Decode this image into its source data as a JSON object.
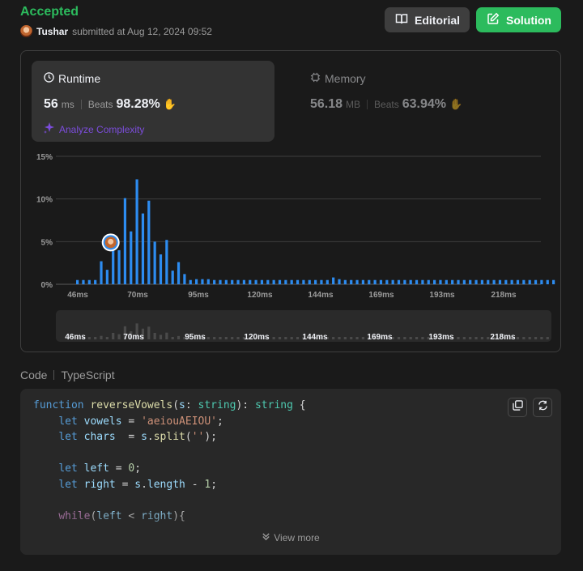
{
  "submission": {
    "status": "Accepted",
    "user": "Tushar",
    "submitted_text": "submitted at Aug 12, 2024 09:52"
  },
  "buttons": {
    "editorial": "Editorial",
    "solution": "Solution"
  },
  "runtime": {
    "title": "Runtime",
    "value": "56",
    "unit": "ms",
    "beats_label": "Beats",
    "beats_pct": "98.28%",
    "analyze_label": "Analyze Complexity"
  },
  "memory": {
    "title": "Memory",
    "value": "56.18",
    "unit": "MB",
    "beats_label": "Beats",
    "beats_pct": "63.94%"
  },
  "colors": {
    "accent_green": "#2cbb5d",
    "bar_blue": "#2d8cf0",
    "purple": "#7c4ddc"
  },
  "chart_data": {
    "type": "bar",
    "title": "",
    "xlabel": "",
    "ylabel": "",
    "ylim": [
      0,
      15
    ],
    "y_ticks": [
      "15%",
      "10%",
      "5%",
      "0%"
    ],
    "x_ticks": [
      "46ms",
      "70ms",
      "95ms",
      "120ms",
      "144ms",
      "169ms",
      "193ms",
      "218ms"
    ],
    "user_marker_bar_index": 6,
    "values": [
      0.5,
      0.5,
      0.5,
      0.5,
      2.7,
      1.7,
      5.0,
      4.0,
      10.1,
      6.2,
      12.3,
      8.3,
      9.8,
      5.0,
      3.5,
      5.2,
      1.6,
      2.6,
      1.2,
      0.5,
      0.6,
      0.6,
      0.6,
      0.5,
      0.5,
      0.5,
      0.5,
      0.5,
      0.5,
      0.5,
      0.5,
      0.5,
      0.5,
      0.5,
      0.5,
      0.5,
      0.5,
      0.5,
      0.5,
      0.5,
      0.5,
      0.5,
      0.5,
      0.8,
      0.6,
      0.5,
      0.5,
      0.5,
      0.5,
      0.5,
      0.5,
      0.5,
      0.5,
      0.5,
      0.5,
      0.5,
      0.5,
      0.5,
      0.5,
      0.5,
      0.5,
      0.5,
      0.5,
      0.5,
      0.5,
      0.5,
      0.5,
      0.5,
      0.5,
      0.5,
      0.5,
      0.5,
      0.5,
      0.5,
      0.5,
      0.5,
      0.5,
      0.5,
      0.5,
      0.5,
      0.5
    ]
  },
  "code_section": {
    "label": "Code",
    "language": "TypeScript",
    "view_more": "View more",
    "lines": [
      "function reverseVowels(s: string): string {",
      "    let vowels = 'aeiouAEIOU';",
      "    let chars  = s.split('');",
      "",
      "    let left = 0;",
      "    let right = s.length - 1;",
      "",
      "    while(left < right){"
    ]
  }
}
